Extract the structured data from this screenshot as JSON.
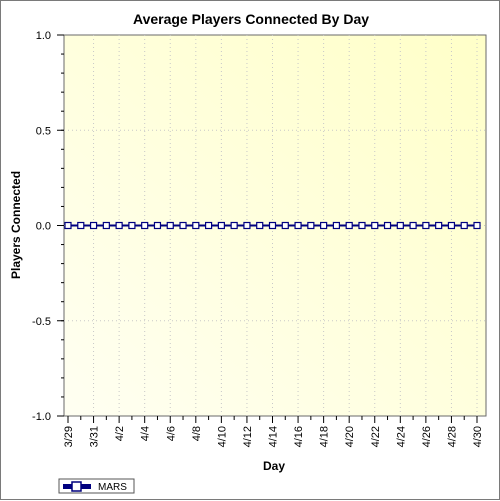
{
  "chart_data": {
    "type": "line",
    "title": "Average Players Connected By Day",
    "xlabel": "Day",
    "ylabel": "Players Connected",
    "ylim": [
      -1.0,
      1.0
    ],
    "yticks": [
      "1.0",
      "0.5",
      "0.0",
      "-0.5",
      "-1.0"
    ],
    "ytick_values": [
      1.0,
      0.5,
      0.0,
      -0.5,
      -1.0
    ],
    "x_tick_labels": [
      "3/29",
      "3/31",
      "4/2",
      "4/4",
      "4/6",
      "4/8",
      "4/10",
      "4/12",
      "4/14",
      "4/16",
      "4/18",
      "4/20",
      "4/22",
      "4/24",
      "4/26",
      "4/28",
      "4/30"
    ],
    "x": [
      "3/29",
      "3/30",
      "3/31",
      "4/1",
      "4/2",
      "4/3",
      "4/4",
      "4/5",
      "4/6",
      "4/7",
      "4/8",
      "4/9",
      "4/10",
      "4/11",
      "4/12",
      "4/13",
      "4/14",
      "4/15",
      "4/16",
      "4/17",
      "4/18",
      "4/19",
      "4/20",
      "4/21",
      "4/22",
      "4/23",
      "4/24",
      "4/25",
      "4/26",
      "4/27",
      "4/28",
      "4/29",
      "4/30"
    ],
    "series": [
      {
        "name": "MARS",
        "color": "#00007f",
        "marker": "square",
        "values": [
          0,
          0,
          0,
          0,
          0,
          0,
          0,
          0,
          0,
          0,
          0,
          0,
          0,
          0,
          0,
          0,
          0,
          0,
          0,
          0,
          0,
          0,
          0,
          0,
          0,
          0,
          0,
          0,
          0,
          0,
          0,
          0,
          0
        ]
      }
    ],
    "grid": true,
    "legend": "bottom-left",
    "background": [
      "#fffff0",
      "#ffffc0"
    ]
  }
}
